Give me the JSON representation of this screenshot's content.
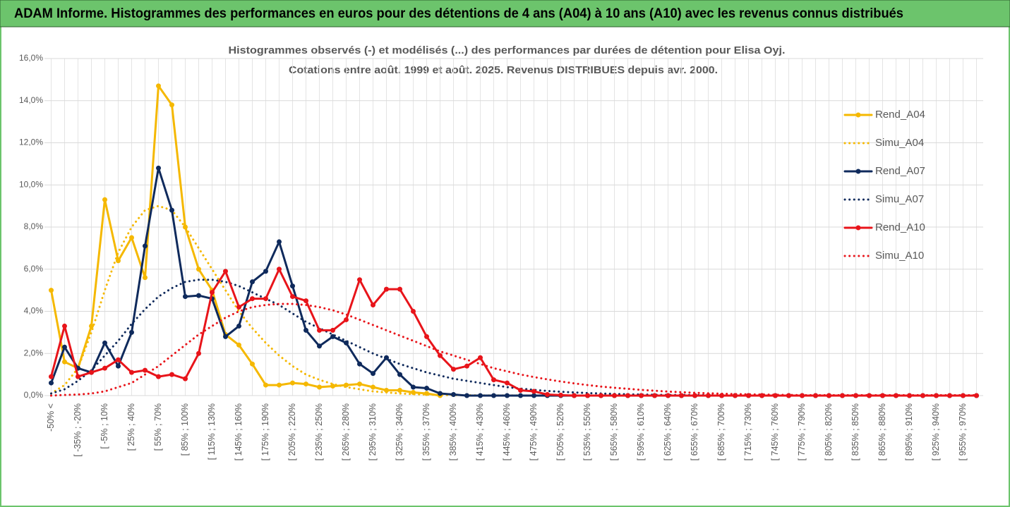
{
  "chart_data": {
    "type": "line",
    "header": "ADAM Informe. Histogrammes des performances en euros pour des détentions de 4 ans (A04) à 10 ans (A10) avec les revenus connus distribués",
    "title": "Histogrammes observés (-) et modélisés (...) des performances par durées de détention pour Elisa Oyj.",
    "subtitle": "Cotations entre août. 1999 et août. 2025. Revenus DISTRIBUES depuis avr. 2000.",
    "categories": [
      "-50% <",
      null,
      "[ -35% ; -20%",
      null,
      "[ -5% ; 10%",
      null,
      "[ 25% ; 40%",
      null,
      "[ 55% ; 70%",
      null,
      "[ 85% ; 100%",
      null,
      "[ 115% ; 130%",
      null,
      "[ 145% ; 160%",
      null,
      "[ 175% ; 190%",
      null,
      "[ 205% ; 220%",
      null,
      "[ 235% ; 250%",
      null,
      "[ 265% ; 280%",
      null,
      "[ 295% ; 310%",
      null,
      "[ 325% ; 340%",
      null,
      "[ 355% ; 370%",
      null,
      "[ 385% ; 400%",
      null,
      "[ 415% ; 430%",
      null,
      "[ 445% ; 460%",
      null,
      "[ 475% ; 490%",
      null,
      "[ 505% ; 520%",
      null,
      "[ 535% ; 550%",
      null,
      "[ 565% ; 580%",
      null,
      "[ 595% ; 610%",
      null,
      "[ 625% ; 640%",
      null,
      "[ 655% ; 670%",
      null,
      "[ 685% ; 700%",
      null,
      "[ 715% ; 730%",
      null,
      "[ 745% ; 760%",
      null,
      "[ 775% ; 790%",
      null,
      "[ 805% ; 820%",
      null,
      "[ 835% ; 850%",
      null,
      "[ 865% ; 880%",
      null,
      "[ 895% ; 910%",
      null,
      "[ 925% ; 940%",
      null,
      "[ 955% ; 970%",
      null
    ],
    "series": [
      {
        "name": "Rend_A04",
        "color": "#f5b800",
        "style": "solid",
        "markers": true,
        "values": [
          5.0,
          1.6,
          1.3,
          3.3,
          9.3,
          6.4,
          7.5,
          5.6,
          14.7,
          13.8,
          8.0,
          6.0,
          5.0,
          2.9,
          2.4,
          1.5,
          0.5,
          0.5,
          0.6,
          0.55,
          0.4,
          0.45,
          0.5,
          0.55,
          0.4,
          0.25,
          0.25,
          0.15,
          0.1,
          0.0,
          null,
          null,
          null,
          null,
          null,
          null,
          null,
          null,
          null,
          null,
          null,
          null,
          null,
          null,
          null,
          null,
          null,
          null,
          null,
          null,
          null,
          null,
          null,
          null,
          null,
          null,
          null,
          null,
          null,
          null,
          null,
          null,
          null,
          null,
          null,
          null,
          null,
          null,
          null,
          null
        ]
      },
      {
        "name": "Simu_A04",
        "color": "#f5b800",
        "style": "dotted",
        "markers": false,
        "values": [
          0.1,
          0.5,
          1.3,
          3.0,
          5.0,
          6.8,
          8.0,
          8.8,
          9.0,
          8.8,
          8.0,
          7.0,
          6.0,
          5.0,
          4.0,
          3.2,
          2.5,
          1.9,
          1.4,
          1.0,
          0.75,
          0.55,
          0.4,
          0.3,
          0.2,
          0.15,
          0.1,
          0.07,
          0.05,
          0.03,
          0.02,
          0.02,
          0.01,
          0.01,
          0.01,
          0.01,
          0,
          0,
          0,
          0,
          0,
          0,
          0,
          0,
          0,
          0,
          0,
          0,
          0,
          0,
          0,
          0,
          0,
          0,
          0,
          0,
          0,
          0,
          0,
          0,
          0,
          0,
          0,
          0,
          0,
          0,
          0,
          0,
          0,
          0
        ]
      },
      {
        "name": "Rend_A07",
        "color": "#0f2a5c",
        "style": "solid",
        "markers": true,
        "values": [
          0.6,
          2.3,
          1.3,
          1.1,
          2.5,
          1.4,
          3.0,
          7.1,
          10.8,
          8.8,
          4.7,
          4.75,
          4.6,
          2.8,
          3.3,
          5.4,
          5.9,
          7.3,
          5.2,
          3.1,
          2.35,
          2.8,
          2.5,
          1.5,
          1.05,
          1.8,
          1.0,
          0.4,
          0.35,
          0.1,
          0.05,
          0,
          0,
          0,
          0,
          0,
          0,
          0,
          0,
          0,
          0,
          0,
          0,
          0,
          0,
          0,
          0,
          0,
          0,
          0,
          0,
          0,
          0,
          0,
          0,
          0,
          0,
          0,
          0,
          0,
          0,
          0,
          0,
          0,
          0,
          0,
          0,
          0,
          0,
          0
        ]
      },
      {
        "name": "Simu_A07",
        "color": "#0f2a5c",
        "style": "dotted",
        "markers": false,
        "values": [
          0.1,
          0.3,
          0.7,
          1.2,
          1.9,
          2.6,
          3.4,
          4.1,
          4.7,
          5.1,
          5.4,
          5.5,
          5.5,
          5.4,
          5.2,
          4.9,
          4.6,
          4.3,
          3.9,
          3.5,
          3.2,
          2.9,
          2.6,
          2.3,
          2.0,
          1.75,
          1.5,
          1.3,
          1.1,
          0.95,
          0.8,
          0.7,
          0.6,
          0.5,
          0.4,
          0.33,
          0.27,
          0.22,
          0.18,
          0.15,
          0.12,
          0.1,
          0.08,
          0.06,
          0.05,
          0.04,
          0.03,
          0.03,
          0.02,
          0.02,
          0.01,
          0.01,
          0.01,
          0.01,
          0.01,
          0.01,
          0.01,
          0.01,
          0.01,
          0.01,
          0.01,
          0.01,
          0.01,
          0.01,
          0.01,
          0.01,
          0.01,
          0.01,
          0.01,
          0.01
        ]
      },
      {
        "name": "Rend_A10",
        "color": "#e8141a",
        "style": "solid",
        "markers": true,
        "values": [
          0.9,
          3.3,
          0.9,
          1.1,
          1.3,
          1.7,
          1.1,
          1.2,
          0.9,
          1.0,
          0.8,
          2.0,
          4.9,
          5.9,
          4.2,
          4.6,
          4.6,
          6.0,
          4.7,
          4.5,
          3.1,
          3.1,
          3.6,
          5.5,
          4.3,
          5.05,
          5.05,
          4.0,
          2.8,
          1.9,
          1.25,
          1.4,
          1.8,
          0.75,
          0.6,
          0.25,
          0.2,
          0.05,
          0.02,
          0,
          0,
          0,
          0,
          0,
          0,
          0,
          0,
          0,
          0,
          0,
          0,
          0,
          0,
          0,
          0,
          0,
          0,
          0,
          0,
          0,
          0,
          0,
          0,
          0,
          0,
          0,
          0,
          0,
          0,
          0
        ]
      },
      {
        "name": "Simu_A10",
        "color": "#e8141a",
        "style": "dotted",
        "markers": false,
        "values": [
          0.0,
          0.03,
          0.05,
          0.1,
          0.2,
          0.4,
          0.6,
          1.0,
          1.4,
          1.9,
          2.4,
          2.9,
          3.3,
          3.7,
          4.0,
          4.2,
          4.3,
          4.35,
          4.35,
          4.3,
          4.2,
          4.05,
          3.85,
          3.6,
          3.35,
          3.1,
          2.85,
          2.6,
          2.35,
          2.1,
          1.9,
          1.7,
          1.5,
          1.3,
          1.15,
          1.0,
          0.88,
          0.77,
          0.67,
          0.58,
          0.5,
          0.43,
          0.37,
          0.32,
          0.27,
          0.23,
          0.19,
          0.16,
          0.13,
          0.11,
          0.09,
          0.07,
          0.06,
          0.05,
          0.04,
          0.03,
          0.02,
          0.02,
          0.02,
          0.02,
          0.02,
          0.02,
          0.02,
          0.02,
          0.02,
          0.02,
          0.02,
          0.02,
          0.02,
          0.02
        ]
      }
    ],
    "ylim": [
      0,
      16
    ],
    "yticks": [
      {
        "value": 0,
        "label": "0,0%"
      },
      {
        "value": 2,
        "label": "2,0%"
      },
      {
        "value": 4,
        "label": "4,0%"
      },
      {
        "value": 6,
        "label": "6,0%"
      },
      {
        "value": 8,
        "label": "8,0%"
      },
      {
        "value": 10,
        "label": "10,0%"
      },
      {
        "value": 12,
        "label": "12,0%"
      },
      {
        "value": 14,
        "label": "14,0%"
      },
      {
        "value": 16,
        "label": "16,0%"
      }
    ],
    "grid": true,
    "legend": "right"
  }
}
